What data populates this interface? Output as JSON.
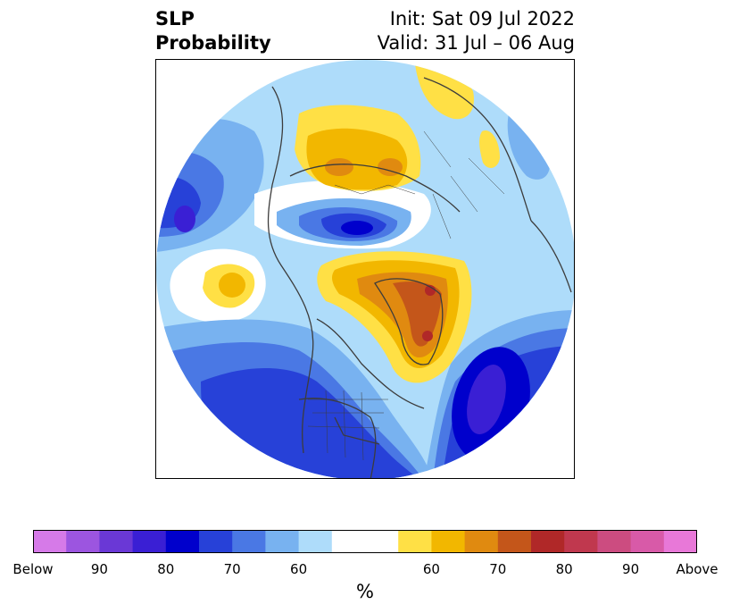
{
  "title": {
    "line1": "SLP",
    "line2": "Probability"
  },
  "info": {
    "init": "Init: Sat 09 Jul 2022",
    "valid": "Valid: 31 Jul – 06 Aug"
  },
  "colorbar": {
    "unit": "%",
    "bins": [
      {
        "color": "#d67ae8"
      },
      {
        "color": "#9c55e0"
      },
      {
        "color": "#6a38d6"
      },
      {
        "color": "#3a1fd4"
      },
      {
        "color": "#0000cc"
      },
      {
        "color": "#2741d8"
      },
      {
        "color": "#4a78e4"
      },
      {
        "color": "#78b2f0"
      },
      {
        "color": "#aedcfa"
      },
      {
        "color": "#ffffff"
      },
      {
        "color": "#ffe045"
      },
      {
        "color": "#f2b700"
      },
      {
        "color": "#e08a10"
      },
      {
        "color": "#c4561a"
      },
      {
        "color": "#b02828"
      },
      {
        "color": "#c0384e"
      },
      {
        "color": "#cc4c80"
      },
      {
        "color": "#d85aa8"
      },
      {
        "color": "#e878d8"
      }
    ],
    "tick_labels": [
      "Below",
      "90",
      "80",
      "70",
      "60",
      "60",
      "70",
      "80",
      "90",
      "Above"
    ]
  },
  "map": {
    "projection": "north polar stereographic",
    "below_colors": {
      "60": "#aedcfa",
      "65": "#78b2f0",
      "70": "#4a78e4",
      "75": "#2741d8",
      "80": "#0000cc",
      "85": "#3a1fd4"
    },
    "above_colors": {
      "60": "#ffe045",
      "65": "#f2b700",
      "70": "#e08a10",
      "75": "#c4561a",
      "80": "#b02828"
    },
    "coastline_color": "#3c3c3c"
  }
}
